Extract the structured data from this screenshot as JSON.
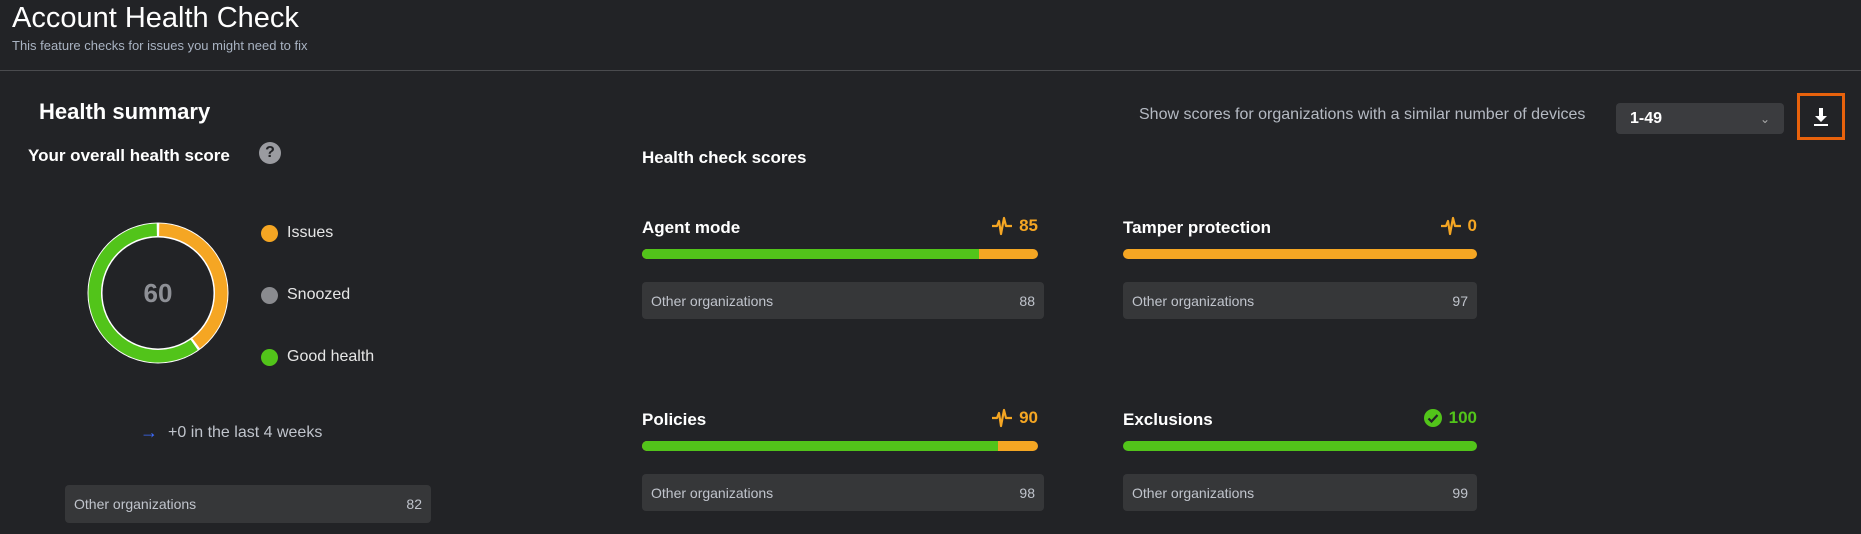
{
  "header": {
    "title": "Account Health Check",
    "subtitle": "This feature checks for issues you might need to fix"
  },
  "summary": {
    "title": "Health summary",
    "overall_label": "Your overall health score",
    "help_icon": "?",
    "score": "60",
    "issues_fraction": 0.4,
    "good_fraction": 0.6,
    "legend": [
      {
        "label": "Issues",
        "color": "#f5a623"
      },
      {
        "label": "Snoozed",
        "color": "#8a8b8f"
      },
      {
        "label": "Good health",
        "color": "#52c41a"
      }
    ],
    "trend_icon": "→",
    "trend": "+0 in the last 4 weeks",
    "other_label": "Other organizations",
    "other_value": "82"
  },
  "filter": {
    "label": "Show scores for organizations with a similar number of devices",
    "selected": "1-49",
    "chevron": "⌄"
  },
  "scores": {
    "title": "Health check scores",
    "items": [
      {
        "name": "Agent mode",
        "score": "85",
        "percent": 85,
        "status": "pulse-icon",
        "other_label": "Other organizations",
        "other_value": "88"
      },
      {
        "name": "Tamper protection",
        "score": "0",
        "percent": 0,
        "status": "pulse-icon",
        "other_label": "Other organizations",
        "other_value": "97"
      },
      {
        "name": "Policies",
        "score": "90",
        "percent": 90,
        "status": "pulse-icon",
        "other_label": "Other organizations",
        "other_value": "98"
      },
      {
        "name": "Exclusions",
        "score": "100",
        "percent": 100,
        "status": "check-circle-icon",
        "other_label": "Other organizations",
        "other_value": "99"
      }
    ]
  },
  "colors": {
    "good": "#52c41a",
    "issue": "#f5a623",
    "accent": "#e8620c"
  }
}
